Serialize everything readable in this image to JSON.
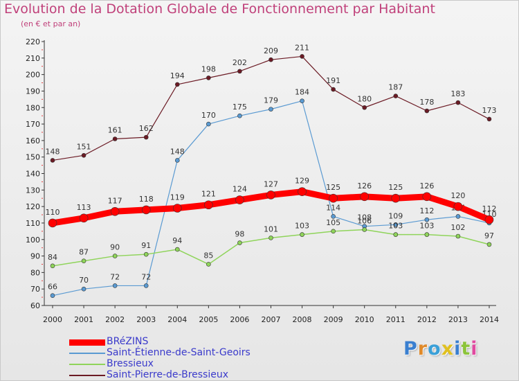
{
  "title": "Evolution de la Dotation Globale de Fonctionnement par Habitant",
  "subtitle": "(en € et par an)",
  "logo": {
    "text": "Proxiti"
  },
  "chart_data": {
    "type": "line",
    "title": "Evolution de la Dotation Globale de Fonctionnement par Habitant",
    "subtitle": "(en € et par an)",
    "xlabel": "",
    "ylabel": "",
    "ylim": [
      60,
      220
    ],
    "ytick_step": 10,
    "grid": false,
    "legend_position": "bottom-left",
    "categories": [
      "2000",
      "2001",
      "2002",
      "2003",
      "2004",
      "2005",
      "2006",
      "2007",
      "2008",
      "2009",
      "2010",
      "2011",
      "2012",
      "2013",
      "2014"
    ],
    "series": [
      {
        "name": "Saint-Pierre-de-Bressieux",
        "color": "#6b1a24",
        "values": [
          148,
          151,
          161,
          162,
          194,
          198,
          202,
          209,
          211,
          191,
          180,
          187,
          178,
          183,
          173
        ]
      },
      {
        "name": "Saint-Étienne-de-Saint-Geoirs",
        "color": "#5a9ad2",
        "values": [
          66,
          70,
          72,
          72,
          148,
          170,
          175,
          179,
          184,
          114,
          108,
          109,
          112,
          114,
          110
        ]
      },
      {
        "name": "Bressieux",
        "color": "#8fd45a",
        "values": [
          84,
          87,
          90,
          91,
          94,
          85,
          98,
          101,
          103,
          105,
          106,
          103,
          103,
          102,
          97
        ]
      },
      {
        "name": "BRéZINS",
        "color": "#ff0000",
        "values": [
          110,
          113,
          117,
          118,
          119,
          121,
          124,
          127,
          129,
          125,
          126,
          125,
          126,
          120,
          112
        ]
      }
    ],
    "legend": [
      "BRéZINS",
      "Saint-Étienne-de-Saint-Geoirs",
      "Bressieux",
      "Saint-Pierre-de-Bressieux"
    ]
  }
}
